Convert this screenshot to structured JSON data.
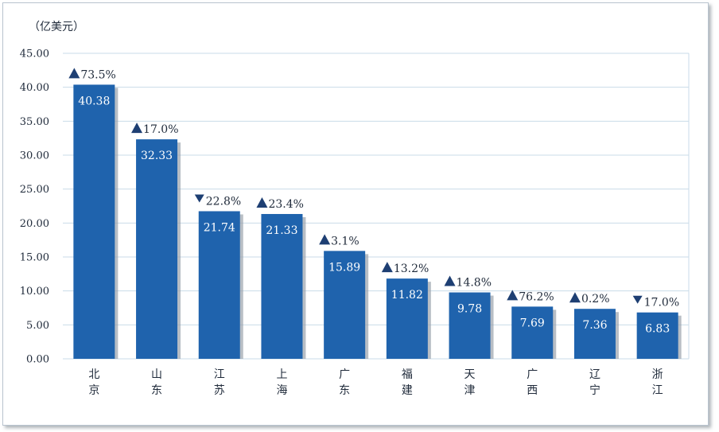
{
  "chart_data": {
    "type": "bar",
    "unit_label": "（亿美元）",
    "categories": [
      "北京",
      "山东",
      "江苏",
      "上海",
      "广东",
      "福建",
      "天津",
      "广西",
      "辽宁",
      "浙江"
    ],
    "values": [
      40.38,
      32.33,
      21.74,
      21.33,
      15.89,
      11.82,
      9.78,
      7.69,
      7.36,
      6.83
    ],
    "value_labels": [
      "40.38",
      "32.33",
      "21.74",
      "21.33",
      "15.89",
      "11.82",
      "9.78",
      "7.69",
      "7.36",
      "6.83"
    ],
    "changes": [
      {
        "direction": "up",
        "text": "73.5%"
      },
      {
        "direction": "up",
        "text": "17.0%"
      },
      {
        "direction": "down",
        "text": "22.8%"
      },
      {
        "direction": "up",
        "text": "23.4%"
      },
      {
        "direction": "up",
        "text": "3.1%"
      },
      {
        "direction": "up",
        "text": "13.2%"
      },
      {
        "direction": "up",
        "text": "14.8%"
      },
      {
        "direction": "up",
        "text": "76.2%"
      },
      {
        "direction": "up",
        "text": "0.2%"
      },
      {
        "direction": "down",
        "text": "17.0%"
      }
    ],
    "ylim": [
      0,
      45
    ],
    "yticks": [
      "0.00",
      "5.00",
      "10.00",
      "15.00",
      "20.00",
      "25.00",
      "30.00",
      "35.00",
      "40.00",
      "45.00"
    ],
    "grid": true,
    "legend": false,
    "colors": {
      "bar": "#1f63ad",
      "bar_shadow": "#9aa3ad",
      "grid": "#c9dbe8",
      "marker": "#1e3f73"
    }
  }
}
